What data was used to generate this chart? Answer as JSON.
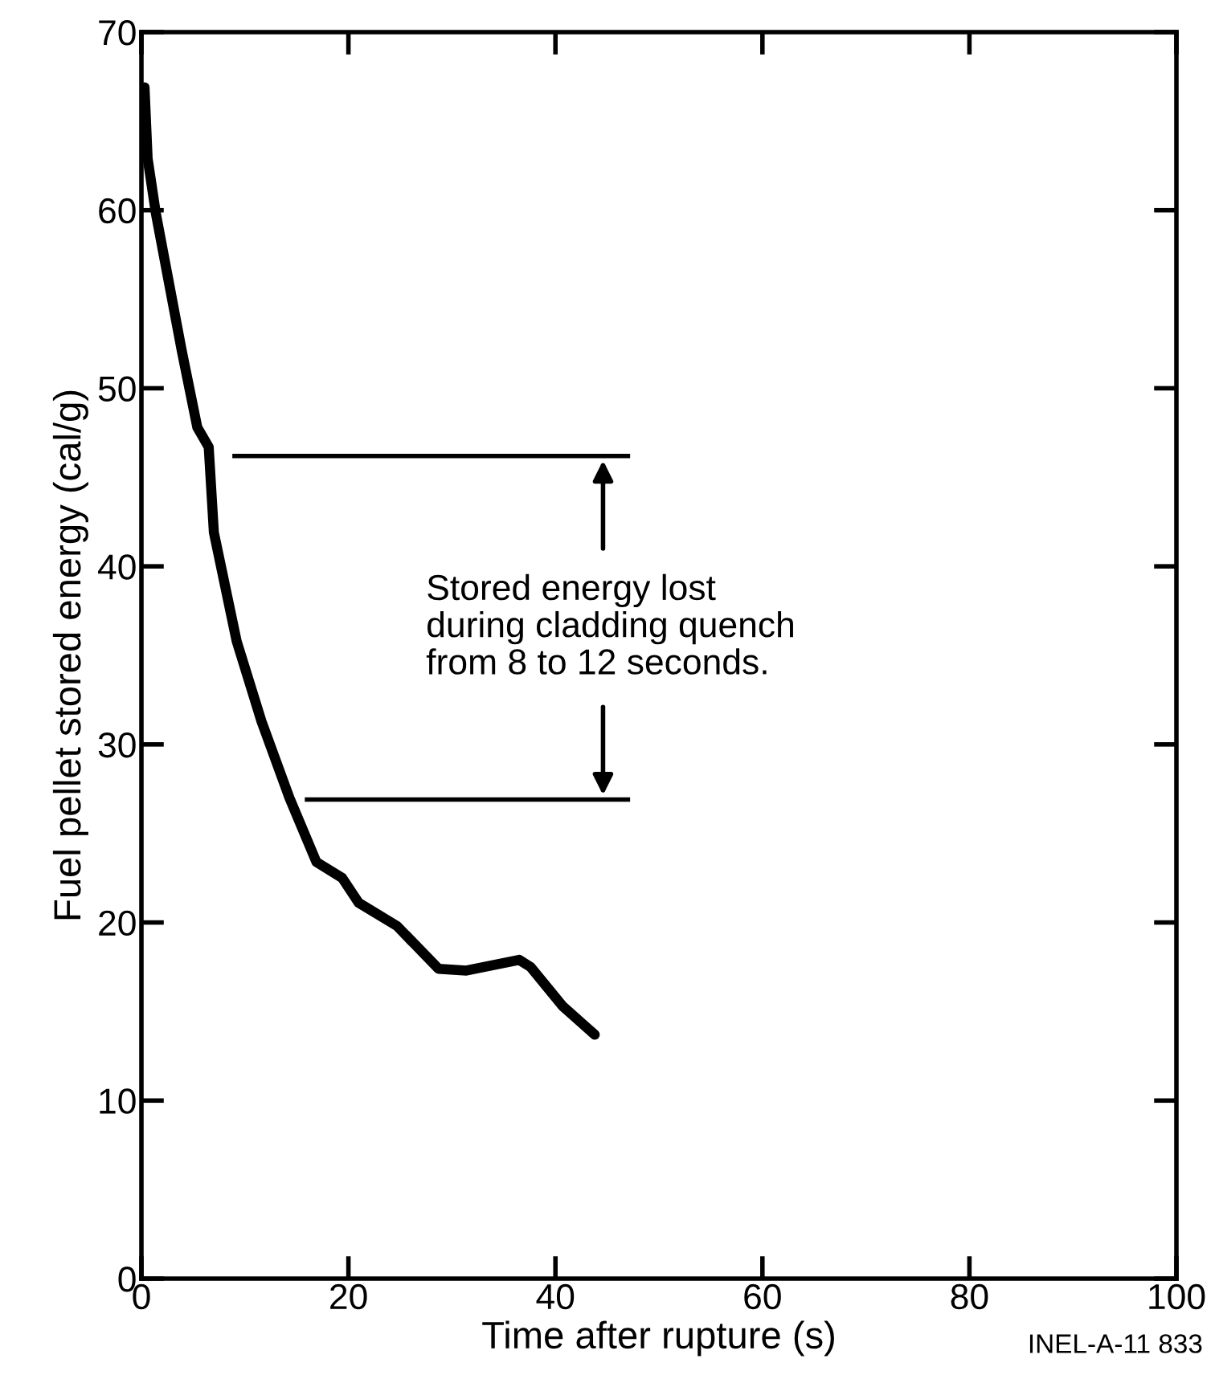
{
  "chart_data": {
    "type": "line",
    "xlabel": "Time after rupture (s)",
    "ylabel": "Fuel pellet stored energy (cal/g)",
    "x": [
      0.3,
      0.6,
      1.4,
      3.9,
      5.4,
      6.5,
      7.0,
      9.2,
      11.6,
      14.3,
      16.9,
      19.4,
      21.0,
      24.7,
      28.7,
      31.4,
      36.5,
      37.6,
      40.7,
      43.8
    ],
    "series": [
      {
        "color": "#000000",
        "values": [
          66.9,
          62.9,
          59.8,
          52.1,
          47.8,
          46.7,
          41.9,
          35.8,
          31.3,
          27.0,
          23.4,
          22.5,
          21.1,
          19.8,
          17.4,
          17.3,
          17.9,
          17.5,
          15.3,
          13.7
        ]
      }
    ],
    "xlim": [
      0,
      100
    ],
    "ylim": [
      0,
      70
    ],
    "xticks": [
      0,
      20,
      40,
      60,
      80,
      100
    ],
    "yticks": [
      0,
      10,
      20,
      30,
      40,
      50,
      60,
      70
    ],
    "grid": false,
    "legend": false,
    "marker": "none",
    "line_style": "solid",
    "ref_lines": [
      {
        "axis": "y",
        "value": 46.2,
        "label": null
      },
      {
        "axis": "y",
        "value": 26.9,
        "label": null
      }
    ],
    "annotations": [
      "Stored energy lost\nduring cladding quench\nfrom 8 to 12 seconds.",
      "INEL-A-11 833"
    ]
  }
}
